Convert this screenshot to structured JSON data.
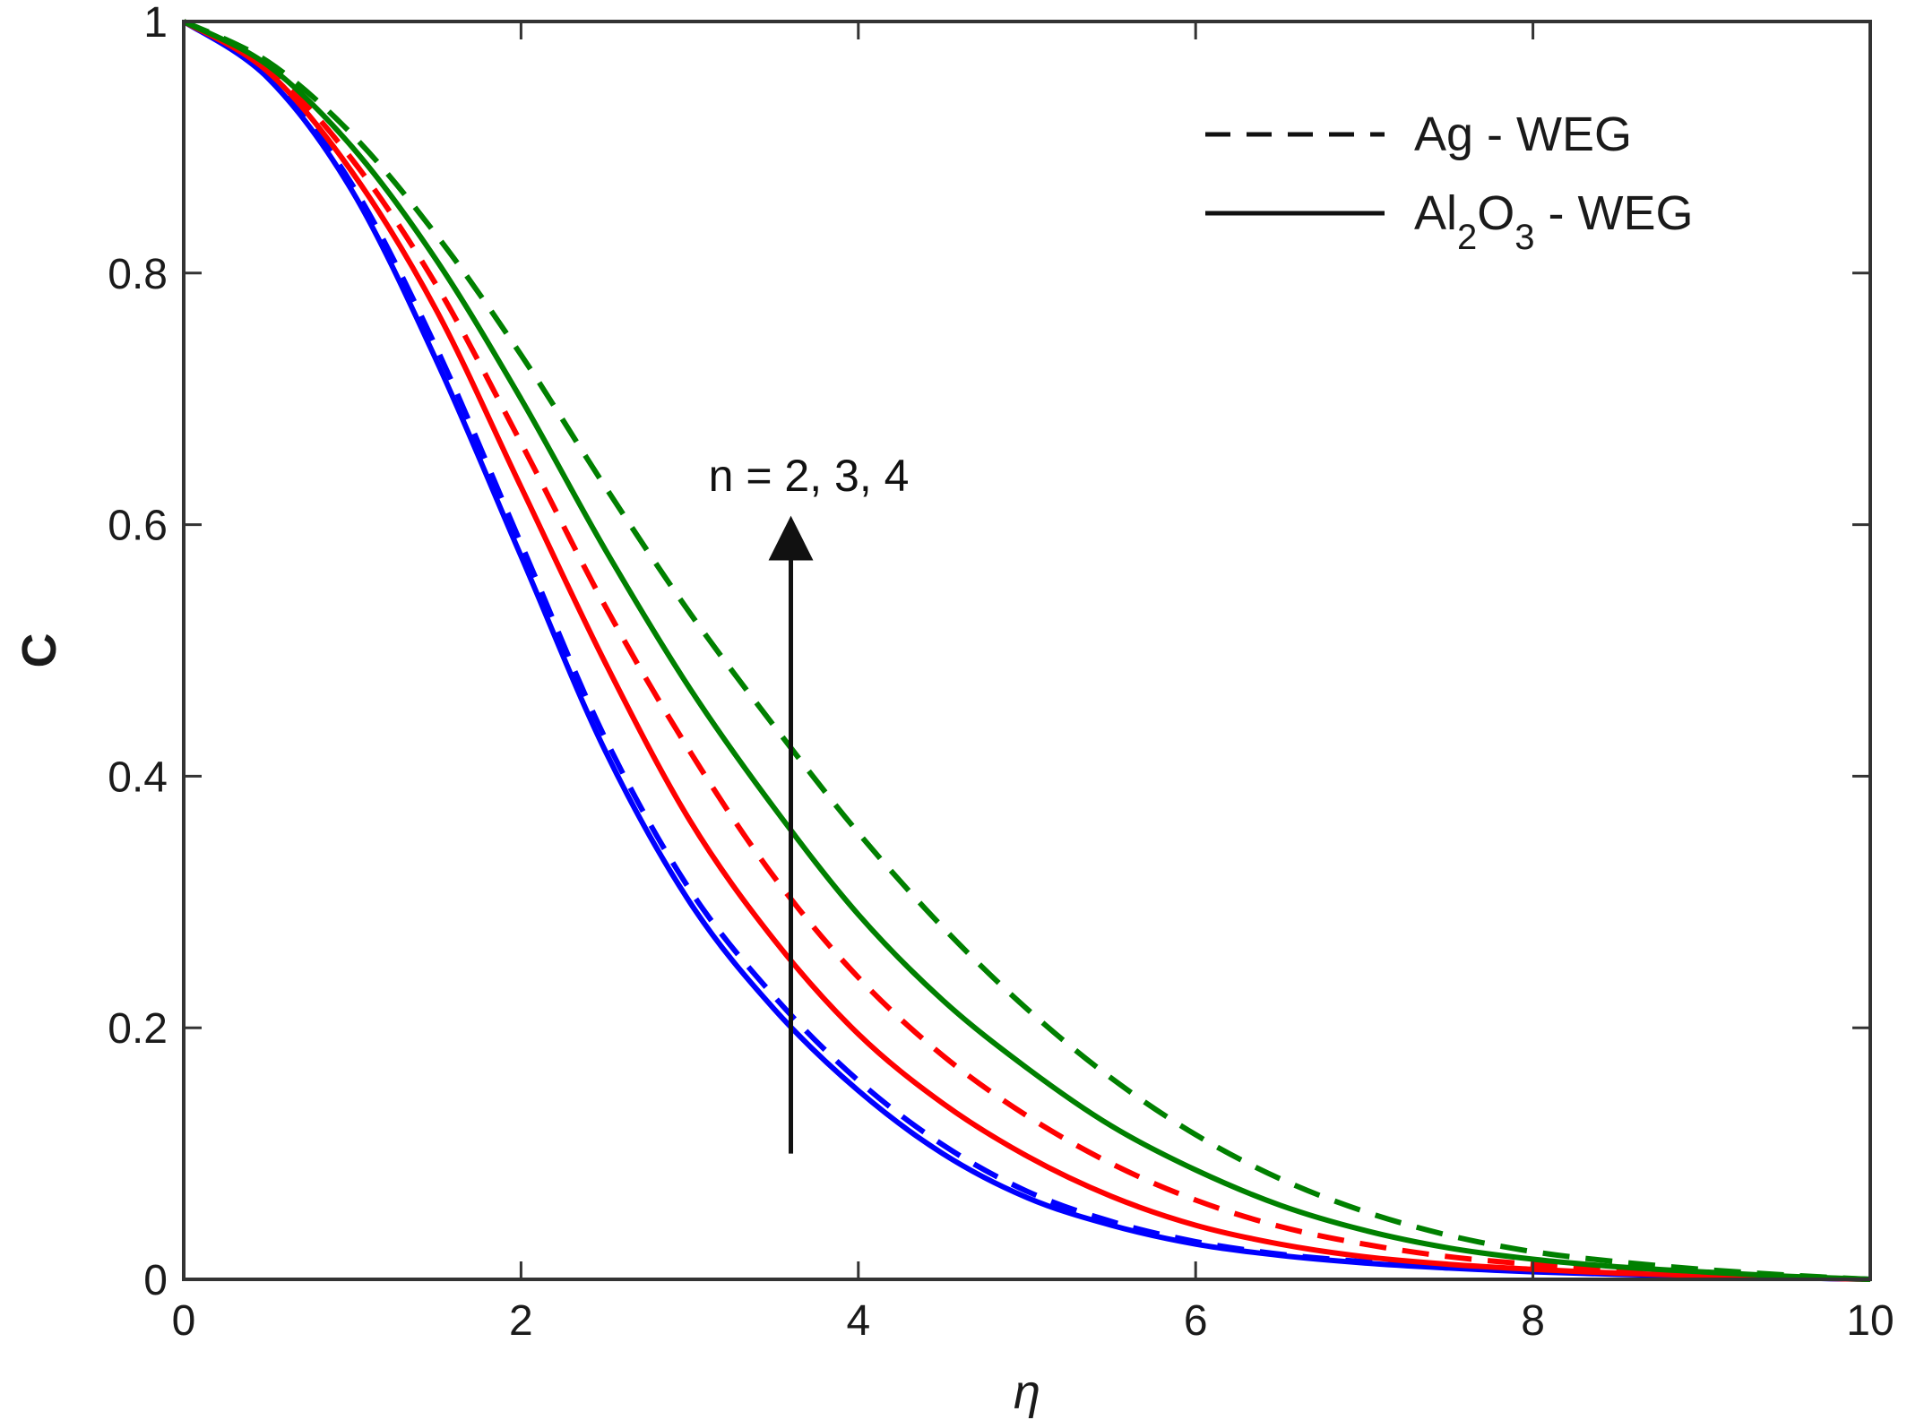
{
  "chart_data": {
    "type": "line",
    "title": "",
    "xlabel": "η",
    "ylabel": "C",
    "xlim": [
      0,
      10
    ],
    "ylim": [
      0,
      1
    ],
    "xticks": [
      0,
      2,
      4,
      6,
      8,
      10
    ],
    "yticks": [
      0,
      0.2,
      0.4,
      0.6,
      0.8,
      1
    ],
    "xtick_labels": [
      "0",
      "2",
      "4",
      "6",
      "8",
      "10"
    ],
    "ytick_labels": [
      "0",
      "0.2",
      "0.4",
      "0.6",
      "0.8",
      "1"
    ],
    "grid": false,
    "legend_position": "top-right",
    "legend": [
      {
        "style": "dashed",
        "label": "Ag - WEG"
      },
      {
        "style": "solid",
        "label_main": "Al",
        "sub1": "2",
        "label_mid": "O",
        "sub2": "3",
        "label_tail": " - WEG"
      }
    ],
    "annotation": {
      "text": "n = 2, 3, 4",
      "arrow_x": 3.6,
      "arrow_y_from": 0.1,
      "arrow_y_to": 0.6
    },
    "x": [
      0,
      0.5,
      1,
      1.5,
      2,
      2.5,
      3,
      3.5,
      4,
      4.5,
      5,
      5.5,
      6,
      6.5,
      7,
      7.5,
      8,
      8.5,
      9,
      9.5,
      10
    ],
    "series": [
      {
        "color": "#0000ff",
        "style": "solid",
        "values": [
          1.0,
          0.955,
          0.865,
          0.73,
          0.575,
          0.42,
          0.3,
          0.215,
          0.15,
          0.1,
          0.065,
          0.043,
          0.028,
          0.019,
          0.013,
          0.009,
          0.006,
          0.004,
          0.0025,
          0.0012,
          0.0
        ]
      },
      {
        "color": "#0000ff",
        "style": "dashed",
        "values": [
          1.0,
          0.957,
          0.87,
          0.74,
          0.585,
          0.43,
          0.31,
          0.225,
          0.158,
          0.107,
          0.07,
          0.046,
          0.03,
          0.02,
          0.014,
          0.0095,
          0.0065,
          0.0045,
          0.0028,
          0.0013,
          0.0
        ]
      },
      {
        "color": "#ff0000",
        "style": "solid",
        "values": [
          1.0,
          0.96,
          0.88,
          0.77,
          0.63,
          0.49,
          0.365,
          0.27,
          0.195,
          0.14,
          0.098,
          0.066,
          0.043,
          0.028,
          0.018,
          0.012,
          0.008,
          0.005,
          0.003,
          0.0014,
          0.0
        ]
      },
      {
        "color": "#ff0000",
        "style": "dashed",
        "values": [
          1.0,
          0.963,
          0.89,
          0.79,
          0.665,
          0.535,
          0.42,
          0.32,
          0.24,
          0.178,
          0.13,
          0.092,
          0.063,
          0.042,
          0.028,
          0.018,
          0.012,
          0.0075,
          0.0045,
          0.002,
          0.0
        ]
      },
      {
        "color": "#008000",
        "style": "solid",
        "values": [
          1.0,
          0.965,
          0.9,
          0.81,
          0.7,
          0.58,
          0.47,
          0.375,
          0.29,
          0.222,
          0.168,
          0.122,
          0.087,
          0.059,
          0.039,
          0.025,
          0.016,
          0.01,
          0.006,
          0.0025,
          0.0
        ]
      },
      {
        "color": "#008000",
        "style": "dashed",
        "values": [
          1.0,
          0.968,
          0.91,
          0.83,
          0.735,
          0.63,
          0.53,
          0.44,
          0.355,
          0.28,
          0.215,
          0.16,
          0.115,
          0.08,
          0.054,
          0.035,
          0.022,
          0.014,
          0.008,
          0.0035,
          0.0
        ]
      }
    ]
  }
}
